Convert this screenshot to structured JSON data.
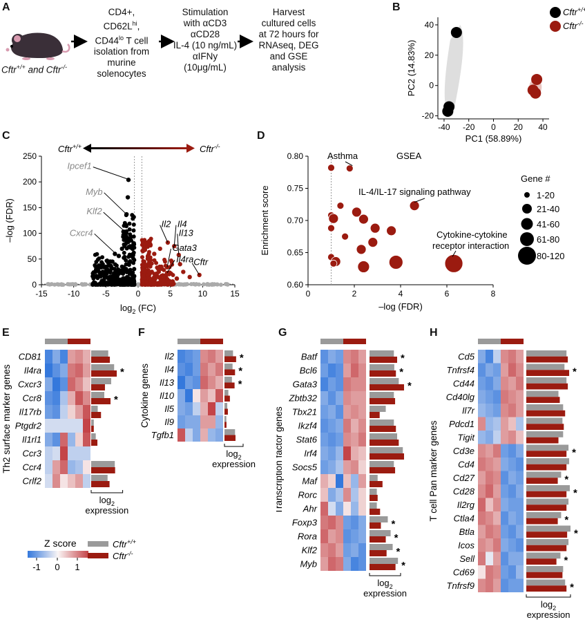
{
  "panel_labels": {
    "A": "A",
    "B": "B",
    "C": "C",
    "D": "D",
    "E": "E",
    "F": "F",
    "G": "G",
    "H": "H"
  },
  "panel_a": {
    "mouse_label_wt": "Cftr",
    "mouse_label_wt_sup": "+/+",
    "mouse_label_and": " and ",
    "mouse_label_ko": "Cftr",
    "mouse_label_ko_sup": "-/-",
    "steps": [
      [
        "CD4+,",
        "CD62L^hi,",
        "CD44^lo T cell",
        "isolation from",
        "murine",
        "solenocytes"
      ],
      [
        "Stimulation",
        "with αCD3",
        "αCD28",
        "IL-4 (10 ng/mL)",
        "αIFNy",
        "(10μg/mL)"
      ],
      [
        "Harvest",
        "cultured cells",
        "at 72 hours for",
        "RNAseq, DEG",
        "and GSE",
        "analysis"
      ]
    ]
  },
  "legend_genotype": {
    "wt": "Cftr+/+",
    "ko": "Cftr-/-",
    "wt_color": "#9a9a9a",
    "ko_color": "#9b1b10"
  },
  "zscore_legend": {
    "title": "Z score",
    "ticks": [
      "-1",
      "0",
      "1"
    ]
  },
  "chart_data": [
    {
      "id": "B",
      "type": "scatter",
      "xlabel": "PC1 (58.89%)",
      "ylabel": "PC2 (14.83%)",
      "xlim": [
        -45,
        45
      ],
      "ylim": [
        -22,
        45
      ],
      "xticks": [
        -40,
        -20,
        0,
        20,
        40
      ],
      "yticks": [
        -20,
        0,
        20,
        40
      ],
      "series": [
        {
          "name": "Cftr+/+",
          "points": [
            [
              -30,
              35
            ],
            [
              -36,
              -14
            ],
            [
              -37,
              -17
            ]
          ]
        },
        {
          "name": "Cftr-/-",
          "points": [
            [
              35,
              4
            ],
            [
              32,
              -3
            ],
            [
              34,
              -5
            ]
          ]
        }
      ]
    },
    {
      "id": "C",
      "type": "scatter",
      "xlabel": "log2 (FC)",
      "ylabel": "–log (FDR)",
      "xlim": [
        -15,
        15
      ],
      "ylim": [
        0,
        250
      ],
      "xticks": [
        -15,
        -10,
        -5,
        0,
        5,
        10,
        15
      ],
      "yticks": [
        0,
        50,
        100,
        150,
        200,
        250
      ],
      "direction_left": "Cftr+/+",
      "direction_right": "Cftr-/-",
      "annotations": [
        {
          "text": "Ipcef1",
          "x": -1.5,
          "y": 205,
          "color": "gray"
        },
        {
          "text": "Myb",
          "x": -1.8,
          "y": 137,
          "color": "gray"
        },
        {
          "text": "Klf2",
          "x": -2.2,
          "y": 105,
          "color": "gray"
        },
        {
          "text": "Cxcr4",
          "x": -3.0,
          "y": 55,
          "color": "gray"
        },
        {
          "text": "Il2",
          "x": 4.6,
          "y": 82,
          "color": "dark"
        },
        {
          "text": "Il4",
          "x": 5.6,
          "y": 75,
          "color": "dark"
        },
        {
          "text": "Il13",
          "x": 6.3,
          "y": 58,
          "color": "dark"
        },
        {
          "text": "Gata3",
          "x": 4.5,
          "y": 34,
          "color": "dark"
        },
        {
          "text": "Cftr",
          "x": 9.5,
          "y": 19,
          "color": "dark"
        },
        {
          "text": "Il4ra",
          "x": 4.5,
          "y": 23,
          "color": "dark"
        }
      ]
    },
    {
      "id": "D",
      "type": "scatter",
      "title": "GSEA",
      "xlabel": "–log (FDR)",
      "ylabel": "Enrichment score",
      "xlim": [
        0,
        8
      ],
      "ylim": [
        0.6,
        0.8
      ],
      "xticks": [
        0,
        2,
        4,
        6,
        8
      ],
      "yticks": [
        0.6,
        0.65,
        0.7,
        0.75,
        0.8
      ],
      "threshold_x": 1.0,
      "points": [
        {
          "x": 1.0,
          "y": 0.782,
          "size": 1
        },
        {
          "x": 1.8,
          "y": 0.781,
          "size": 1
        },
        {
          "x": 4.6,
          "y": 0.723,
          "size": 2
        },
        {
          "x": 1.4,
          "y": 0.723,
          "size": 1
        },
        {
          "x": 1.0,
          "y": 0.708,
          "size": 1
        },
        {
          "x": 2.1,
          "y": 0.713,
          "size": 2
        },
        {
          "x": 1.1,
          "y": 0.703,
          "size": 2
        },
        {
          "x": 2.4,
          "y": 0.702,
          "size": 2
        },
        {
          "x": 1.0,
          "y": 0.688,
          "size": 1
        },
        {
          "x": 2.9,
          "y": 0.688,
          "size": 2
        },
        {
          "x": 3.6,
          "y": 0.684,
          "size": 2
        },
        {
          "x": 1.6,
          "y": 0.675,
          "size": 1
        },
        {
          "x": 2.8,
          "y": 0.666,
          "size": 2
        },
        {
          "x": 2.3,
          "y": 0.655,
          "size": 2
        },
        {
          "x": 1.0,
          "y": 0.643,
          "size": 1
        },
        {
          "x": 1.2,
          "y": 0.636,
          "size": 2
        },
        {
          "x": 1.1,
          "y": 0.633,
          "size": 1
        },
        {
          "x": 2.4,
          "y": 0.628,
          "size": 3
        },
        {
          "x": 3.8,
          "y": 0.635,
          "size": 4
        },
        {
          "x": 6.3,
          "y": 0.633,
          "size": 5
        }
      ],
      "annotations": [
        {
          "text": "Asthma",
          "x": 2.2,
          "y": 0.797
        },
        {
          "text": "IL-4/IL-17 signaling pathway",
          "x": 2.2,
          "y": 0.74
        },
        {
          "text": "Cytokine-cytokine",
          "x": 5.4,
          "y": 0.668
        },
        {
          "text": "receptor interaction",
          "x": 5.2,
          "y": 0.654
        }
      ],
      "size_legend": {
        "title": "Gene #",
        "bins": [
          "1-20",
          "21-40",
          "41-60",
          "61-80",
          "80-120"
        ]
      }
    },
    {
      "id": "E",
      "type": "heatmap",
      "ylabel": "Th2 surface marker genes",
      "genes": [
        "CD81",
        "Il4ra",
        "Cxcr3",
        "Ccr8",
        "Il17rb",
        "Ptgdr2",
        "Il1rl1",
        "Ccr3",
        "Ccr4",
        "Crlf2"
      ],
      "z": [
        [
          -0.9,
          -0.6,
          -0.9,
          0.5,
          0.6,
          0.4
        ],
        [
          -1,
          -0.8,
          -0.6,
          0.7,
          0.8,
          0.5
        ],
        [
          -0.6,
          -1,
          -0.8,
          0.8,
          0.6,
          0.3
        ],
        [
          -0.8,
          -0.9,
          -0.4,
          0.4,
          0.9,
          0.6
        ],
        [
          -0.7,
          -0.8,
          -0.3,
          0.2,
          0.5,
          0.9
        ],
        [
          -0.2,
          -0.2,
          -0.2,
          -0.2,
          -0.2,
          1
        ],
        [
          -0.6,
          -0.8,
          0.8,
          -0.5,
          0.2,
          0.9
        ],
        [
          -0.3,
          -0.2,
          1,
          -0.3,
          -0.3,
          -0.3
        ],
        [
          -0.3,
          0.5,
          0.8,
          -0.5,
          -0.4,
          0.1
        ],
        [
          -0.2,
          0.6,
          0.1,
          0.3,
          0.5,
          -0.3
        ]
      ],
      "expr_wt": [
        5.2,
        7.0,
        6.1,
        4.0,
        2.0,
        0.8,
        1.4,
        0,
        7.2,
        5.0
      ],
      "expr_ko": [
        5.7,
        7.8,
        4.2,
        5.9,
        3.0,
        0.8,
        1.9,
        0,
        7.3,
        5.6
      ],
      "sig": [
        false,
        true,
        false,
        true,
        false,
        false,
        false,
        false,
        false,
        false
      ],
      "axis_label": "log2",
      "axis_label2": "expression"
    },
    {
      "id": "F",
      "type": "heatmap",
      "ylabel": "Cytokine genes",
      "genes": [
        "Il2",
        "Il4",
        "Il13",
        "Il10",
        "Il5",
        "Il9",
        "Tgfb1"
      ],
      "z": [
        [
          -0.9,
          -0.8,
          -0.7,
          0.6,
          0.7,
          0.5
        ],
        [
          -0.8,
          -0.9,
          -0.7,
          0.7,
          0.5,
          0.7
        ],
        [
          -1,
          -0.7,
          -0.8,
          0.8,
          0.6,
          0.4
        ],
        [
          -0.6,
          -1,
          0.1,
          0.5,
          0.3,
          0.9
        ],
        [
          -0.6,
          -0.7,
          -0.3,
          0.4,
          1,
          -0.3
        ],
        [
          -0.7,
          -0.6,
          -0.6,
          0.5,
          0.5,
          -0.5
        ],
        [
          0.9,
          -0.3,
          -0.6,
          0.4,
          -0.5,
          -0.6
        ]
      ],
      "expr_wt": [
        5.5,
        5.2,
        4.8,
        2.5,
        1.8,
        1.2,
        6.8
      ],
      "expr_ko": [
        7.5,
        6.8,
        6.5,
        3.5,
        2.2,
        1.3,
        7.1
      ],
      "sig": [
        true,
        true,
        true,
        false,
        false,
        false,
        false
      ],
      "axis_label": "log2",
      "axis_label2": "expression"
    },
    {
      "id": "G",
      "type": "heatmap",
      "ylabel": "Transcription factor genes",
      "genes": [
        "Batf",
        "Bcl6",
        "Gata3",
        "Zbtb32",
        "Tbx21",
        "Ikzf4",
        "Stat6",
        "Irf4",
        "Socs5",
        "Maf",
        "Rorc",
        "Ahr",
        "Foxp3",
        "Rora",
        "Klf2",
        "Myb"
      ],
      "z": [
        [
          -0.8,
          -0.6,
          -0.7,
          0.6,
          0.7,
          0.5
        ],
        [
          -0.7,
          -0.9,
          -0.8,
          0.5,
          0.8,
          0.6
        ],
        [
          -0.9,
          -0.7,
          -0.8,
          0.7,
          0.6,
          0.6
        ],
        [
          -0.6,
          -0.8,
          -0.6,
          0.6,
          0.5,
          0.5
        ],
        [
          -0.7,
          -0.6,
          -0.8,
          0.5,
          0.6,
          0.5
        ],
        [
          -0.8,
          -0.7,
          -0.6,
          0.7,
          0.4,
          0.6
        ],
        [
          -0.7,
          -0.8,
          -0.7,
          0.6,
          0.5,
          0.7
        ],
        [
          -0.6,
          -0.7,
          -0.5,
          1,
          0.4,
          0.3
        ],
        [
          -0.7,
          -0.6,
          -0.4,
          0.5,
          0.6,
          0.2
        ],
        [
          0.4,
          0.2,
          -1,
          0.3,
          -0.5,
          0.5
        ],
        [
          0.3,
          -0.6,
          -0.4,
          0.6,
          -0.4,
          0.2
        ],
        [
          0.8,
          -0.2,
          -0.6,
          0.1,
          -0.5,
          0.2
        ],
        [
          0.7,
          0.8,
          0.6,
          -0.7,
          -0.8,
          -0.6
        ],
        [
          0.8,
          0.5,
          0.6,
          -0.8,
          -0.7,
          -0.6
        ],
        [
          0.6,
          0.7,
          0.5,
          -0.7,
          -0.6,
          -0.8
        ],
        [
          0.5,
          0.8,
          0.7,
          -0.6,
          -0.9,
          -0.8
        ]
      ],
      "expr_wt": [
        6.0,
        6.1,
        7.2,
        6.0,
        4.0,
        6.0,
        6.8,
        8.2,
        6.0,
        2.0,
        1.8,
        1.8,
        4.5,
        5.2,
        5.7,
        7.0
      ],
      "expr_ko": [
        6.8,
        6.5,
        8.5,
        6.3,
        2.5,
        6.5,
        7.2,
        8.5,
        6.3,
        3.2,
        2.0,
        2.6,
        2.8,
        4.0,
        4.2,
        6.4
      ],
      "sig": [
        true,
        true,
        true,
        false,
        false,
        false,
        false,
        false,
        false,
        false,
        false,
        false,
        true,
        true,
        true,
        true
      ],
      "axis_label": "log2",
      "axis_label2": "expression"
    },
    {
      "id": "H",
      "type": "heatmap",
      "ylabel": "T cell Pan marker genes",
      "genes": [
        "Cd5",
        "Tnfrsf4",
        "Cd44",
        "Cd40lg",
        "Il7r",
        "Pdcd1",
        "Tigit",
        "Cd3e",
        "Cd4",
        "Cd27",
        "Cd28",
        "Il2rg",
        "Ctla4",
        "Btla",
        "Icos",
        "Sell",
        "Cd69",
        "Tnfrsf9"
      ],
      "z": [
        [
          -0.6,
          -0.9,
          -0.3,
          0.6,
          0.7,
          0.5
        ],
        [
          -0.8,
          -0.6,
          -0.7,
          0.5,
          0.8,
          0.6
        ],
        [
          -0.7,
          -0.8,
          -0.6,
          0.6,
          0.5,
          0.7
        ],
        [
          -0.6,
          -0.7,
          -0.8,
          0.7,
          0.6,
          0.5
        ],
        [
          -0.5,
          -0.6,
          -0.7,
          0.6,
          0.7,
          0.5
        ],
        [
          0.6,
          -0.5,
          -0.4,
          0.5,
          0.3,
          -0.4
        ],
        [
          -0.5,
          -0.6,
          -0.3,
          0.5,
          0.6,
          0.3
        ],
        [
          0.6,
          0.5,
          0.7,
          -0.7,
          -0.8,
          -0.6
        ],
        [
          0.7,
          0.6,
          0.5,
          -0.6,
          -0.7,
          -0.8
        ],
        [
          0.5,
          0.7,
          0.6,
          -0.8,
          -0.6,
          -0.7
        ],
        [
          0.6,
          0.8,
          0.5,
          -0.7,
          -0.8,
          -0.6
        ],
        [
          0.8,
          0.3,
          0.6,
          -0.6,
          -0.7,
          -0.7
        ],
        [
          0.7,
          0.6,
          0.4,
          -0.8,
          -0.6,
          -0.7
        ],
        [
          0.5,
          0.7,
          0.6,
          -0.7,
          -0.8,
          -0.6
        ],
        [
          0.6,
          0.5,
          0.7,
          -0.6,
          -0.7,
          -0.8
        ],
        [
          0.7,
          -0.1,
          0.5,
          -0.8,
          -0.6,
          -0.6
        ],
        [
          0.1,
          0.7,
          0.6,
          -0.7,
          -0.8,
          -0.5
        ],
        [
          0.6,
          0.7,
          0.5,
          -0.8,
          -0.7,
          -0.7
        ]
      ],
      "expr_wt": [
        6.0,
        5.7,
        6.0,
        4.8,
        5.5,
        5.4,
        5.5,
        6.3,
        6.4,
        5.2,
        6.5,
        6.3,
        5.2,
        6.6,
        6.3,
        5.1,
        5.5,
        5.8
      ],
      "expr_ko": [
        6.2,
        6.4,
        6.2,
        5.0,
        5.8,
        5.6,
        4.8,
        6.0,
        6.0,
        4.7,
        6.0,
        6.0,
        4.7,
        6.1,
        6.0,
        4.5,
        5.4,
        6.0
      ],
      "sig": [
        false,
        true,
        false,
        false,
        false,
        false,
        false,
        true,
        false,
        true,
        true,
        false,
        true,
        true,
        false,
        true,
        false,
        true
      ],
      "axis_label": "log2",
      "axis_label2": "expression"
    }
  ]
}
